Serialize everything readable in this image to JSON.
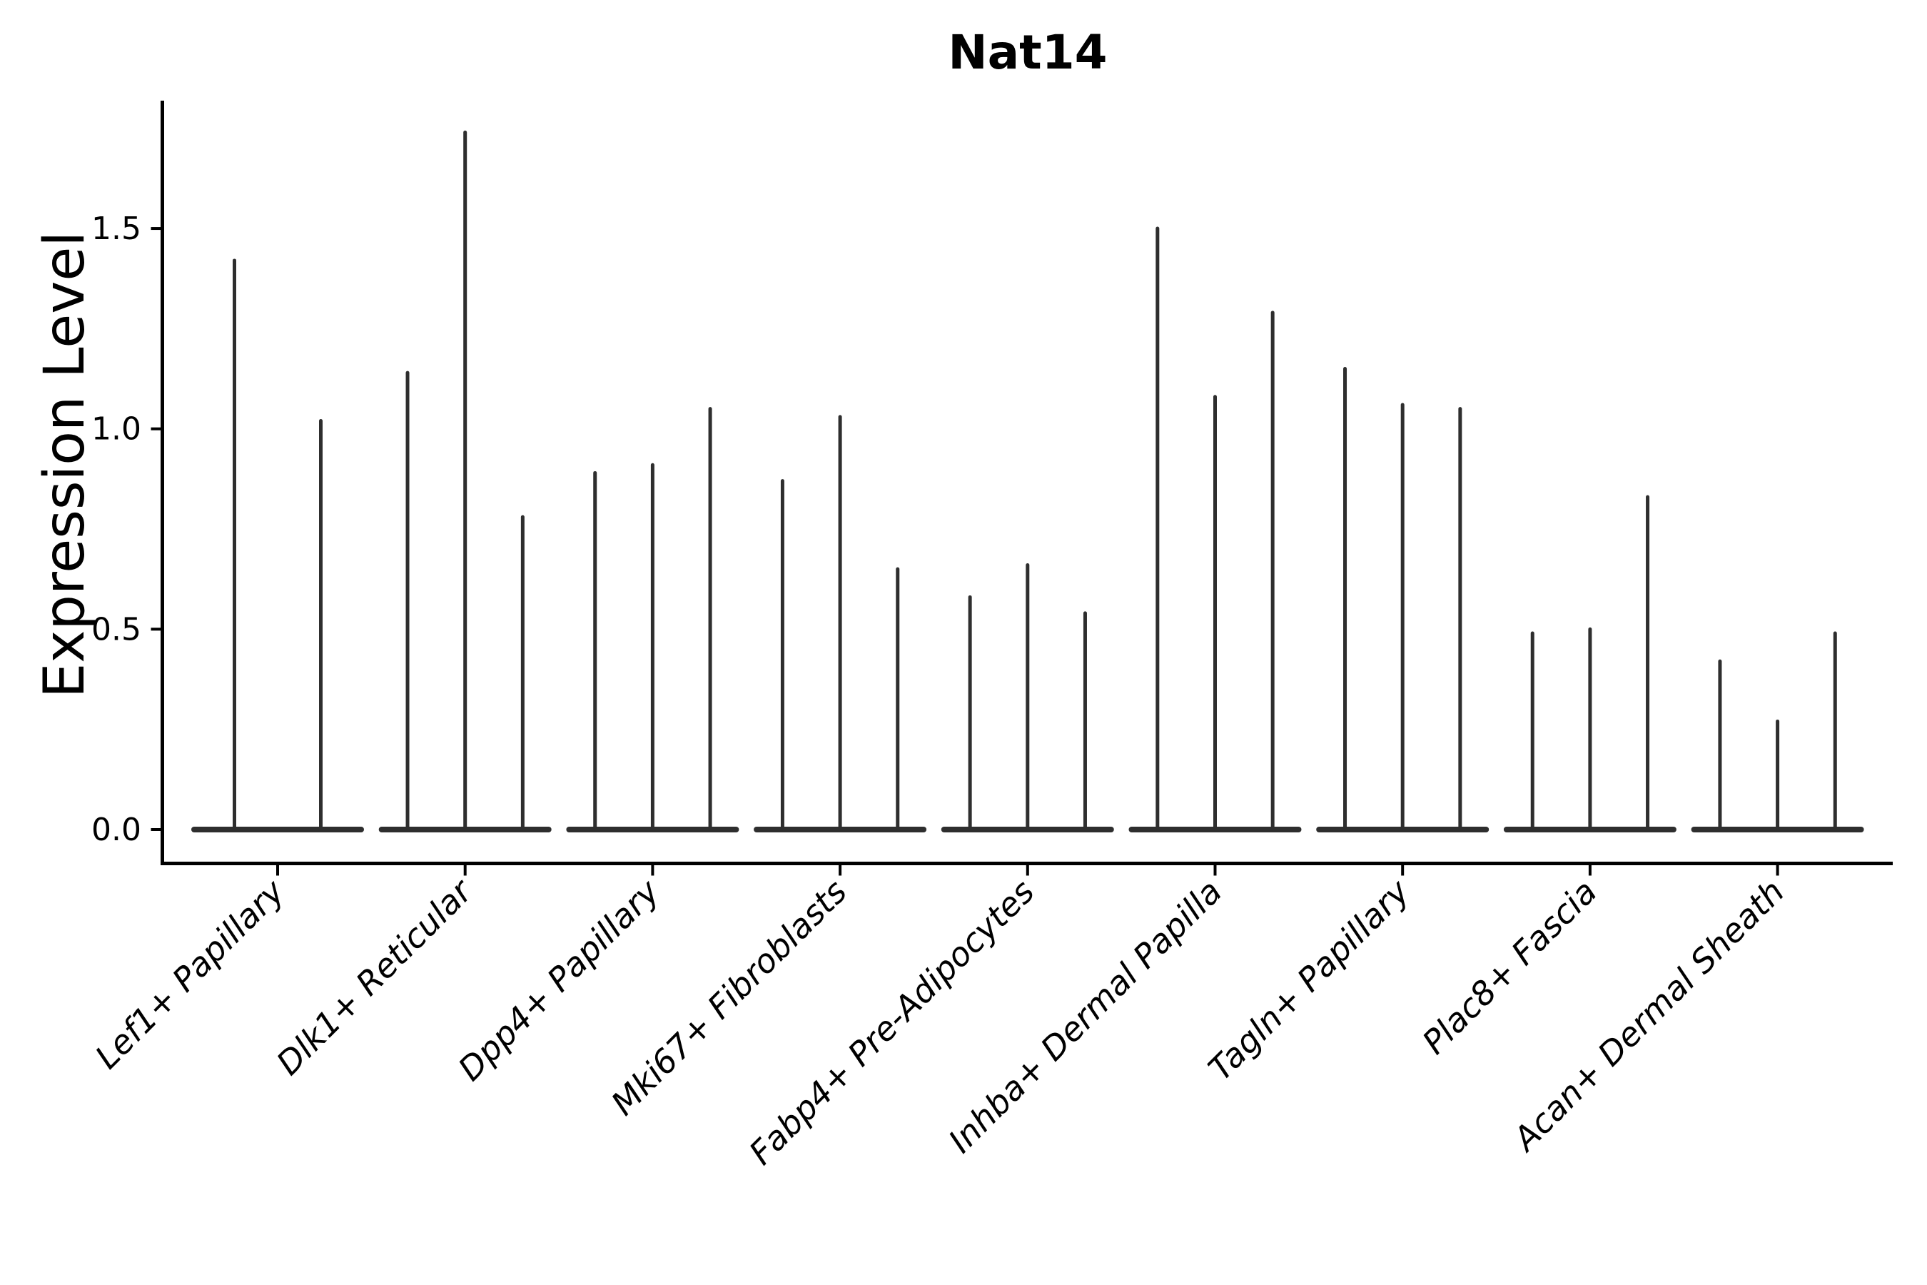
{
  "title": "Nat14",
  "y_axis": {
    "label": "Expression Level",
    "tick_labels": [
      "0.0",
      "0.5",
      "1.0",
      "1.5"
    ]
  },
  "x_axis": {
    "categories": [
      "Lef1+ Papillary",
      "Dlk1+ Reticular",
      "Dpp4+ Papillary",
      "Mki67+ Fibroblasts",
      "Fabp4+ Pre-Adipocytes",
      "Inhba+ Dermal Papilla",
      "Tagln+ Papillary",
      "Plac8+ Fascia",
      "Acan+ Dermal Sheath"
    ]
  },
  "chart_data": {
    "type": "violin",
    "title": "Nat14",
    "xlabel": "",
    "ylabel": "Expression Level",
    "ylim": [
      -0.08,
      1.82
    ],
    "yticks": [
      0,
      0.5,
      1.0,
      1.5
    ],
    "ytick_labels": [
      "0.0",
      "0.5",
      "1.0",
      "1.5"
    ],
    "grid": false,
    "legend": "none",
    "violin_color": "#2e2e2e",
    "axis_color": "#000000",
    "categories": [
      "Lef1+ Papillary",
      "Dlk1+ Reticular",
      "Dpp4+ Papillary",
      "Mki67+ Fibroblasts",
      "Fabp4+ Pre-Adipocytes",
      "Inhba+ Dermal Papilla",
      "Tagln+ Papillary",
      "Plac8+ Fascia",
      "Acan+ Dermal Sheath"
    ],
    "violin_max_values_per_category": [
      [
        1.42,
        1.02
      ],
      [
        1.14,
        1.74,
        0.78
      ],
      [
        0.89,
        0.91,
        1.05
      ],
      [
        0.87,
        1.03,
        0.65
      ],
      [
        0.58,
        0.66,
        0.54
      ],
      [
        1.5,
        1.08,
        1.29
      ],
      [
        1.15,
        1.06,
        1.05
      ],
      [
        0.49,
        0.5,
        0.83
      ],
      [
        0.42,
        0.27,
        0.49
      ]
    ]
  }
}
